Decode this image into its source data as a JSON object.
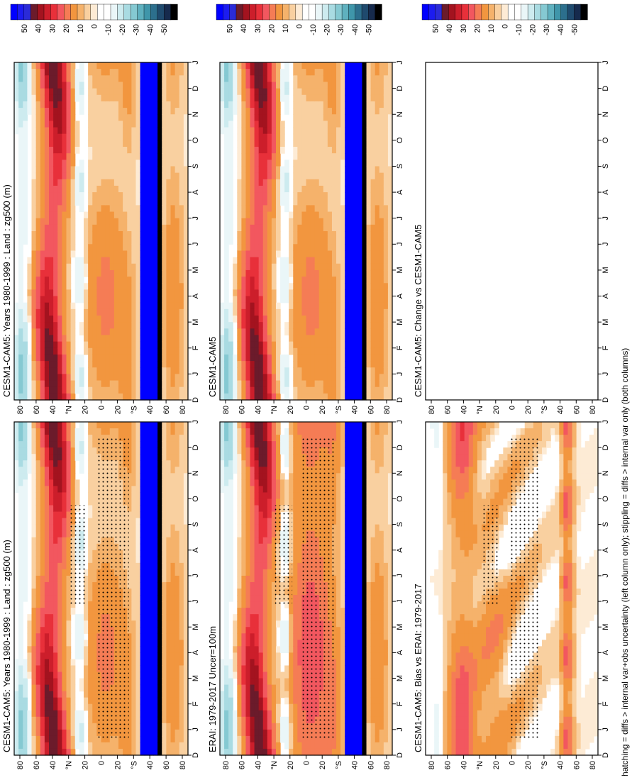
{
  "figure": {
    "footnote": "hatching = diffs > internal var+obs uncertainty (left column only); stippling = diffs > internal var only (both columns)"
  },
  "palette": [
    "#0000ff",
    "#1c1cf0",
    "#2b2bd8",
    "#6b1b2b",
    "#a3131f",
    "#cc1e2b",
    "#e8303a",
    "#f2575f",
    "#f57c55",
    "#f2963f",
    "#f5b26b",
    "#f9d0a0",
    "#fdebd5",
    "#ffffff",
    "#ffffff",
    "#eaf6f8",
    "#cdebef",
    "#a9dbe2",
    "#85c9d2",
    "#5fb1bf",
    "#3f96aa",
    "#2c6f8d",
    "#1f4a6e",
    "#162a4d",
    "#000000"
  ],
  "colorbar_ticks": [
    "50",
    "40",
    "30",
    "20",
    "10",
    "0",
    "-10",
    "-20",
    "-30",
    "-40",
    "-50"
  ],
  "months": [
    "D",
    "J",
    "F",
    "M",
    "A",
    "M",
    "J",
    "J",
    "A",
    "S",
    "O",
    "N",
    "D",
    "J"
  ],
  "lat_ticks": [
    "80",
    "60",
    "40",
    "°N",
    "20",
    "0",
    "20",
    "°S",
    "40",
    "60",
    "80"
  ],
  "chart_data": [
    {
      "type": "heatmap",
      "title": "CESM1-CAM5: Years 1980-1999 : Land : zg500 (m)",
      "x": "month",
      "y": "latitude",
      "ylim": [
        -90,
        90
      ],
      "zlim": [
        -50,
        50
      ],
      "hatching": true,
      "stippling": true
    },
    {
      "type": "heatmap",
      "title": "CESM1-CAM5: Years 1980-1999 : Land : zg500 (m)",
      "x": "month",
      "y": "latitude",
      "ylim": [
        -90,
        90
      ],
      "zlim": [
        -50,
        50
      ],
      "hatching": false,
      "stippling": false
    },
    {
      "type": "heatmap",
      "title": "ERAI: 1979-2017 Uncer=100m",
      "x": "month",
      "y": "latitude",
      "ylim": [
        -90,
        90
      ],
      "zlim": [
        -50,
        50
      ],
      "hatching": true,
      "stippling": true
    },
    {
      "type": "heatmap",
      "title": "CESM1-CAM5",
      "x": "month",
      "y": "latitude",
      "ylim": [
        -90,
        90
      ],
      "zlim": [
        -50,
        50
      ],
      "hatching": false,
      "stippling": false
    },
    {
      "type": "heatmap",
      "title": "CESM1-CAM5: Bias vs ERAI: 1979-2017",
      "x": "month",
      "y": "latitude",
      "ylim": [
        -90,
        90
      ],
      "zlim": [
        -50,
        50
      ],
      "hatching": true,
      "stippling": true
    },
    {
      "type": "heatmap",
      "title": "CESM1-CAM5: Change vs CESM1-CAM5",
      "x": "month",
      "y": "latitude",
      "ylim": [
        -90,
        90
      ],
      "zlim": [
        -50,
        50
      ],
      "empty": true
    }
  ]
}
